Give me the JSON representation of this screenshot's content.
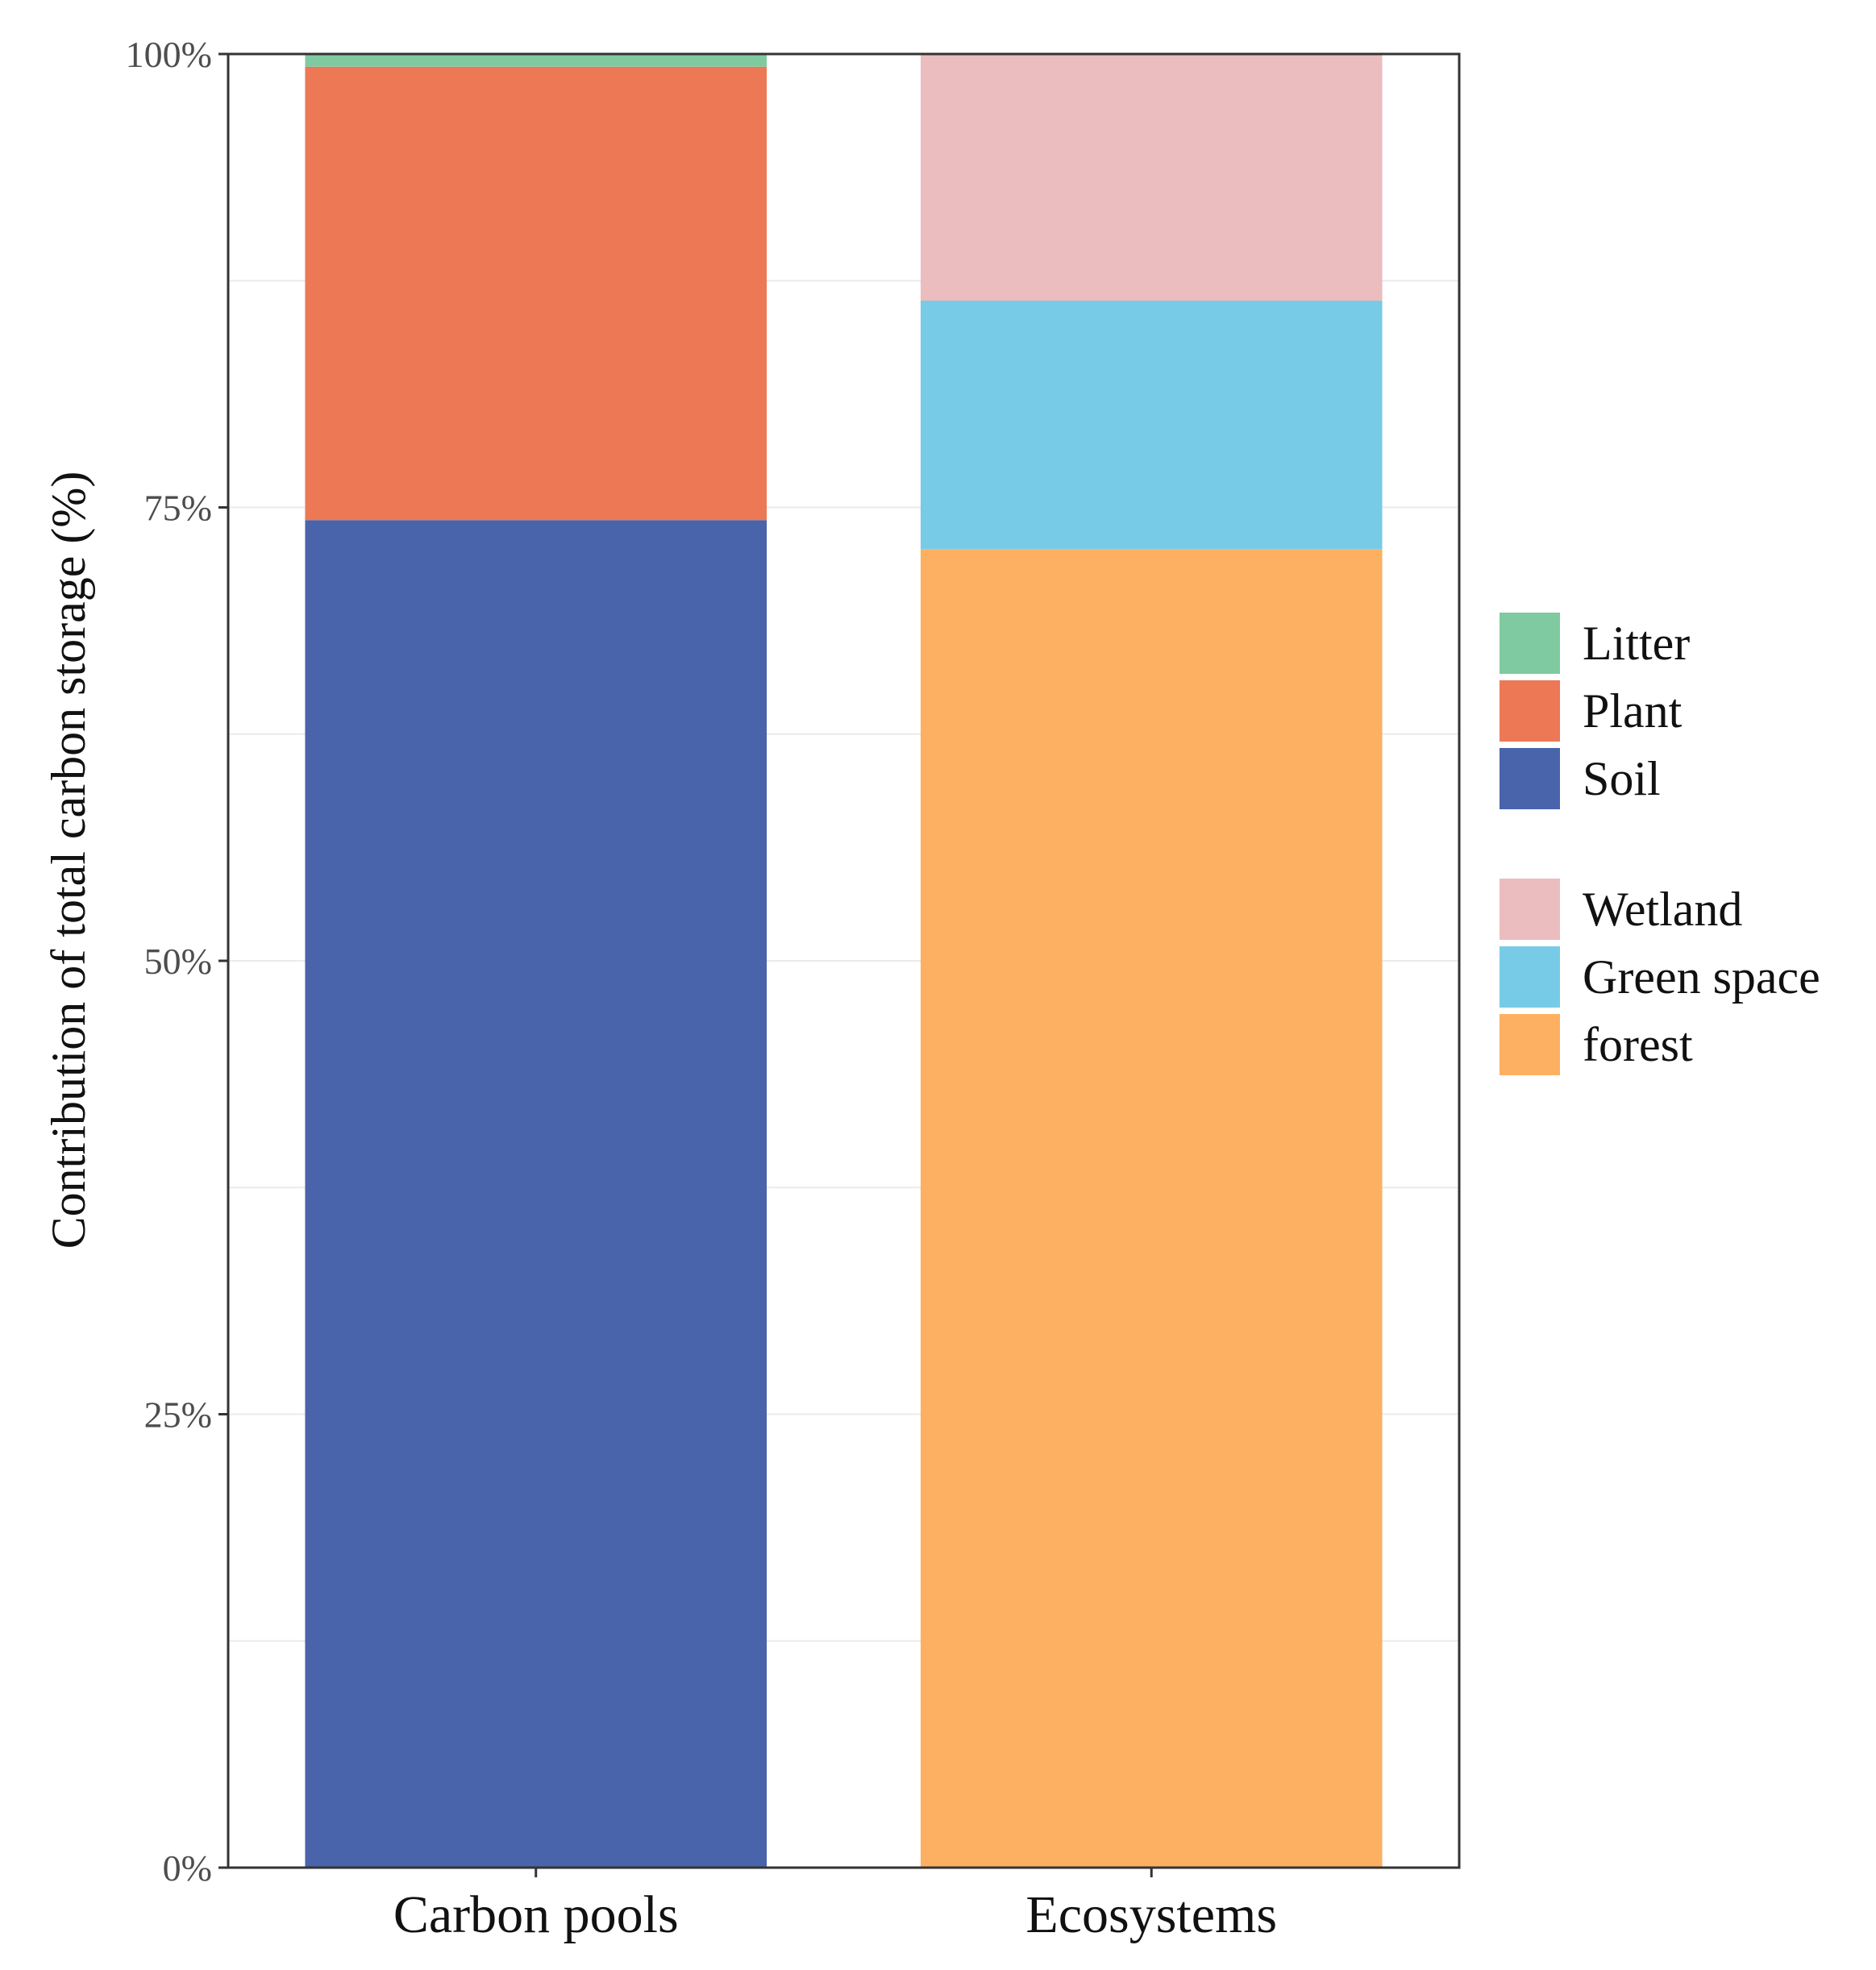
{
  "chart_data": {
    "type": "bar",
    "stacked": true,
    "ylabel": "Contribution of total carbon storage (%)",
    "xlabel": "",
    "ylim": [
      0,
      100
    ],
    "y_ticks": [
      {
        "value": 0,
        "label": "0%"
      },
      {
        "value": 25,
        "label": "25%"
      },
      {
        "value": 50,
        "label": "50%"
      },
      {
        "value": 75,
        "label": "75%"
      },
      {
        "value": 100,
        "label": "100%"
      }
    ],
    "y_minor_gridlines": [
      12.5,
      37.5,
      62.5,
      87.5
    ],
    "categories": [
      "Carbon pools",
      "Ecosystems"
    ],
    "series": [
      {
        "name": "Soil",
        "color": "#4A64AC",
        "values": [
          74.3,
          0
        ]
      },
      {
        "name": "Plant",
        "color": "#EC7856",
        "values": [
          25.0,
          0
        ]
      },
      {
        "name": "Litter",
        "color": "#7FCAA0",
        "values": [
          0.7,
          0
        ]
      },
      {
        "name": "forest",
        "color": "#FDB062",
        "values": [
          0,
          72.7
        ]
      },
      {
        "name": "Green space",
        "color": "#77CBE6",
        "values": [
          0,
          13.7
        ]
      },
      {
        "name": "Wetland",
        "color": "#EBBDBF",
        "values": [
          0,
          13.6
        ]
      }
    ],
    "legend": {
      "placement": "right",
      "groups": [
        [
          "Litter",
          "Plant",
          "Soil"
        ],
        [
          "Wetland",
          "Green space",
          "forest"
        ]
      ]
    }
  }
}
